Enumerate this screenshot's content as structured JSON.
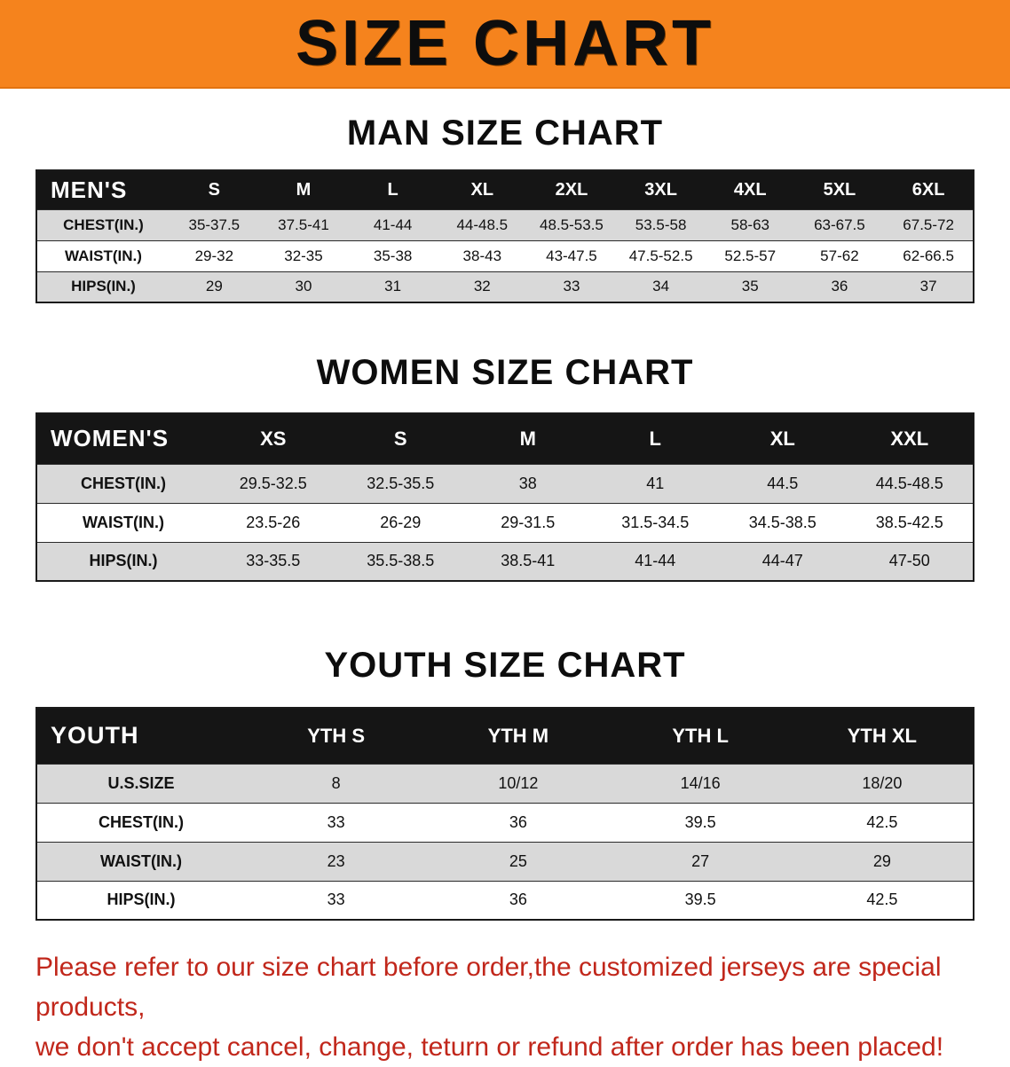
{
  "banner": {
    "title": "SIZE CHART"
  },
  "colors": {
    "banner_bg": "#f5831d",
    "table_header_bg": "#151515",
    "row_alt_bg": "#d9d9d9",
    "footer_text": "#c1271b"
  },
  "men": {
    "heading": "MAN SIZE CHART",
    "table": {
      "header": [
        "MEN'S",
        "S",
        "M",
        "L",
        "XL",
        "2XL",
        "3XL",
        "4XL",
        "5XL",
        "6XL"
      ],
      "rows": [
        [
          "CHEST(IN.)",
          "35-37.5",
          "37.5-41",
          "41-44",
          "44-48.5",
          "48.5-53.5",
          "53.5-58",
          "58-63",
          "63-67.5",
          "67.5-72"
        ],
        [
          "WAIST(IN.)",
          "29-32",
          "32-35",
          "35-38",
          "38-43",
          "43-47.5",
          "47.5-52.5",
          "52.5-57",
          "57-62",
          "62-66.5"
        ],
        [
          "HIPS(IN.)",
          "29",
          "30",
          "31",
          "32",
          "33",
          "34",
          "35",
          "36",
          "37"
        ]
      ]
    }
  },
  "women": {
    "heading": "WOMEN SIZE CHART",
    "table": {
      "header": [
        "WOMEN'S",
        "XS",
        "S",
        "M",
        "L",
        "XL",
        "XXL"
      ],
      "rows": [
        [
          "CHEST(IN.)",
          "29.5-32.5",
          "32.5-35.5",
          "38",
          "41",
          "44.5",
          "44.5-48.5"
        ],
        [
          "WAIST(IN.)",
          "23.5-26",
          "26-29",
          "29-31.5",
          "31.5-34.5",
          "34.5-38.5",
          "38.5-42.5"
        ],
        [
          "HIPS(IN.)",
          "33-35.5",
          "35.5-38.5",
          "38.5-41",
          "41-44",
          "44-47",
          "47-50"
        ]
      ]
    }
  },
  "youth": {
    "heading": "YOUTH SIZE CHART",
    "table": {
      "header": [
        "YOUTH",
        "YTH S",
        "YTH M",
        "YTH L",
        "YTH XL"
      ],
      "rows": [
        [
          "U.S.SIZE",
          "8",
          "10/12",
          "14/16",
          "18/20"
        ],
        [
          "CHEST(IN.)",
          "33",
          "36",
          "39.5",
          "42.5"
        ],
        [
          "WAIST(IN.)",
          "23",
          "25",
          "27",
          "29"
        ],
        [
          "HIPS(IN.)",
          "33",
          "36",
          "39.5",
          "42.5"
        ]
      ]
    }
  },
  "footer": {
    "line1": "Please refer to our size chart before order,the customized jerseys are special products,",
    "line2": "we don't accept cancel, change, teturn or refund after order has been placed!"
  }
}
